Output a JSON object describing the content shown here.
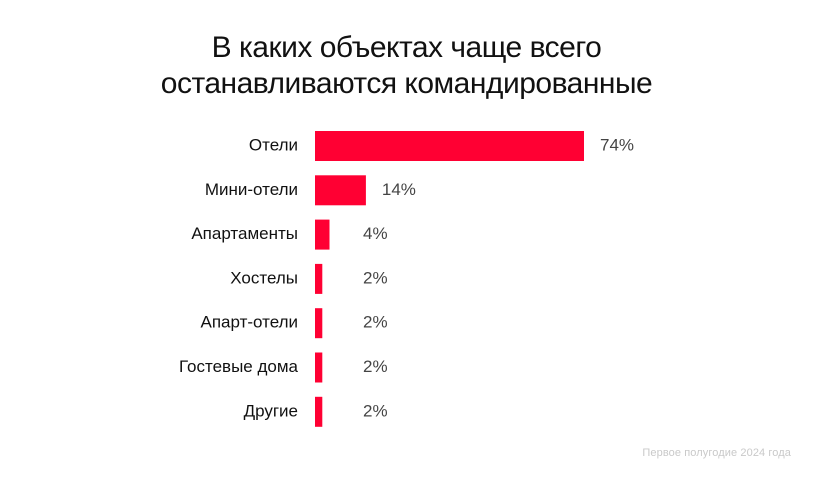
{
  "chart_data": {
    "type": "bar",
    "orientation": "horizontal",
    "title_lines": [
      "В каких объектах чаще всего",
      "останавливаются командированные"
    ],
    "categories": [
      "Отели",
      "Мини-отели",
      "Апартаменты",
      "Хостелы",
      "Апарт-отели",
      "Гостевые дома",
      "Другие"
    ],
    "values": [
      74,
      14,
      4,
      2,
      2,
      2,
      2
    ],
    "value_labels": [
      "74%",
      "14%",
      "4%",
      "2%",
      "2%",
      "2%",
      "2%"
    ],
    "unit": "%",
    "xlim": [
      0,
      74
    ],
    "bar_color": "#ff0033",
    "grid": false,
    "legend": "none",
    "footnote": "Первое полугодие 2024 года"
  }
}
